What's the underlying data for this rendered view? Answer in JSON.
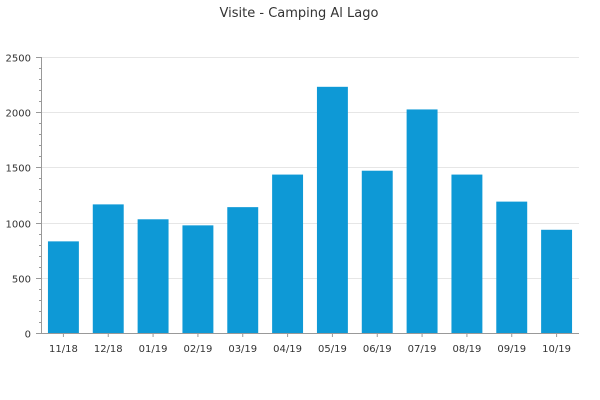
{
  "chart_data": {
    "type": "bar",
    "title": "Visite - Camping Al Lago",
    "xlabel": "",
    "ylabel": "",
    "categories": [
      "11/18",
      "12/18",
      "01/19",
      "02/19",
      "03/19",
      "04/19",
      "05/19",
      "06/19",
      "07/19",
      "08/19",
      "09/19",
      "10/19"
    ],
    "values": [
      830,
      1165,
      1030,
      975,
      1140,
      1435,
      2230,
      1470,
      2025,
      1435,
      1190,
      935
    ],
    "ylim": [
      0,
      2500
    ],
    "yticks": [
      0,
      500,
      1000,
      1500,
      2000,
      2500
    ],
    "grid": true,
    "legend": "none",
    "bar_color": "#0e99d6"
  }
}
